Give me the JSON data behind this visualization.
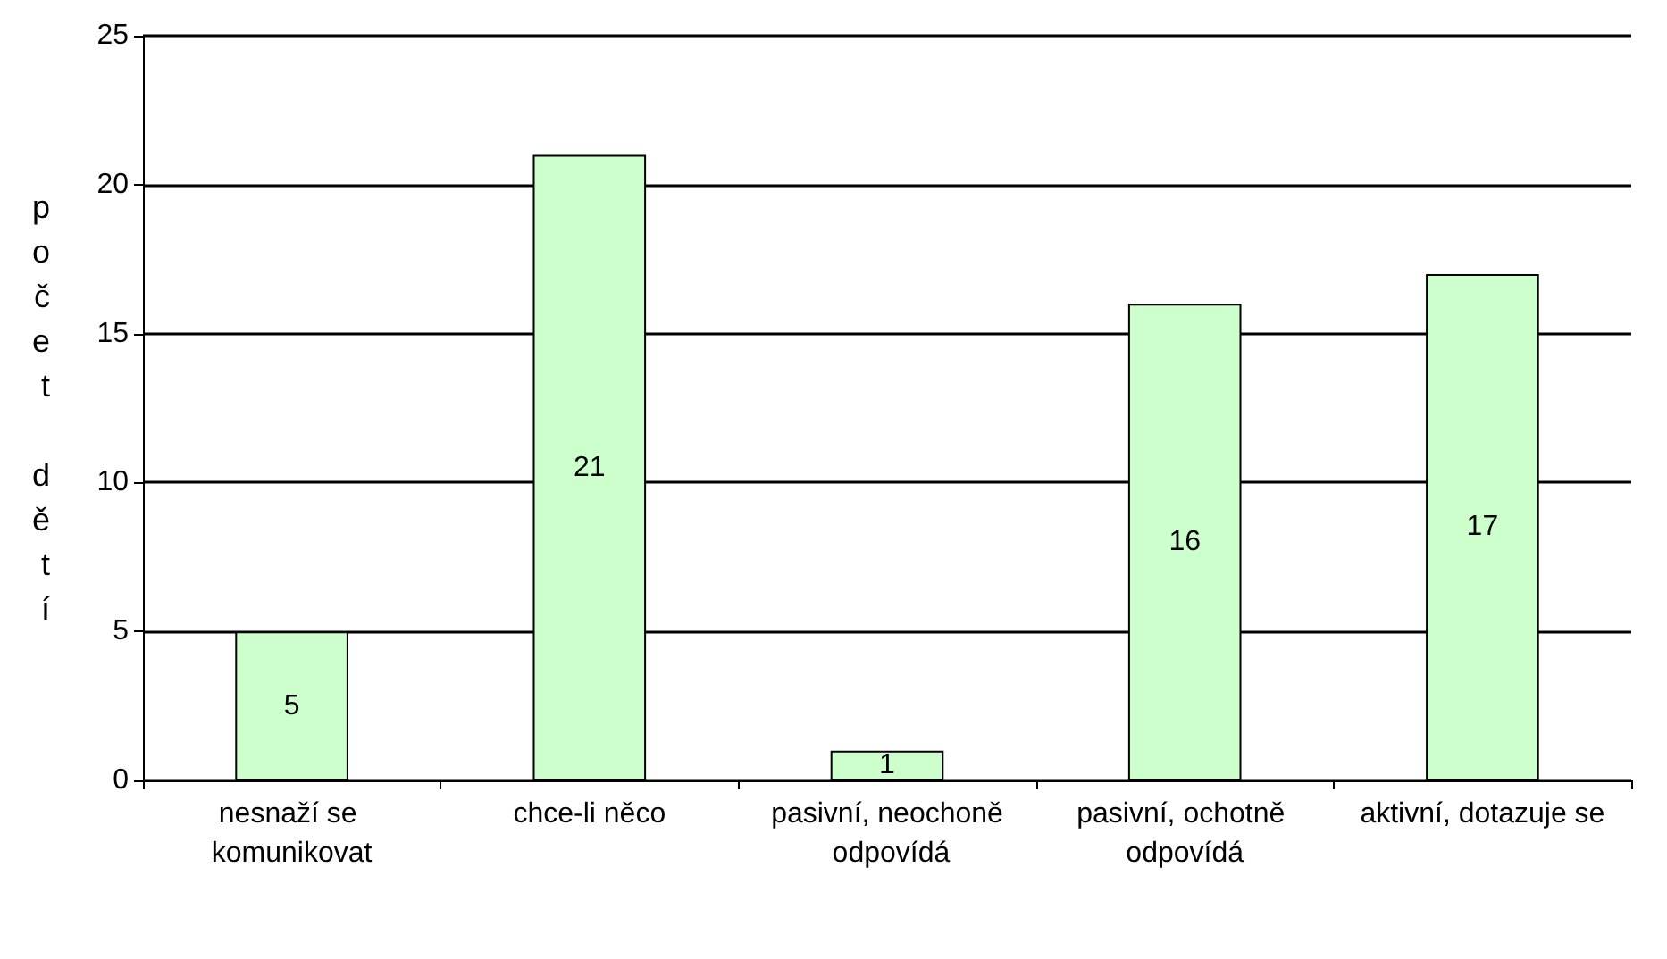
{
  "chart_data": {
    "type": "bar",
    "ylabel": "počet dětí",
    "categories": [
      "nesnaží se komunikovat",
      "chce-li něco",
      "pasivní, neochoně odpovídá",
      "pasivní, ochotně odpovídá",
      "aktivní, dotazuje se"
    ],
    "values": [
      5,
      21,
      1,
      16,
      17
    ],
    "color": "#ccffcc",
    "ylim": [
      0,
      25
    ],
    "yticks": [
      0,
      5,
      10,
      15,
      20,
      25
    ],
    "grid": "y",
    "data_labels": true
  }
}
